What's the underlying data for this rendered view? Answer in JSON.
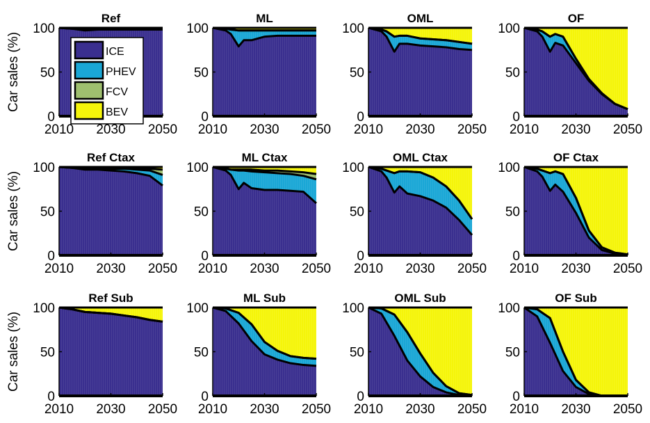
{
  "figure": {
    "ylabel": "Car sales (%)",
    "x_ticks": [
      "2010",
      "2030",
      "2050"
    ],
    "y_ticks": [
      "0",
      "50",
      "100"
    ]
  },
  "legend": {
    "entries": [
      {
        "label": "ICE",
        "color": "#3a2f8f"
      },
      {
        "label": "PHEV",
        "color": "#1aa7d6"
      },
      {
        "label": "FCV",
        "color": "#9fbf6f"
      },
      {
        "label": "BEV",
        "color": "#f5f50a"
      }
    ]
  },
  "colors": {
    "ICE": "#3a2f8f",
    "PHEV": "#1aa7d6",
    "FCV": "#9fbf6f",
    "BEV": "#f5f50a",
    "outline": "#000000"
  },
  "chart_data": [
    {
      "title": "Ref",
      "type": "area",
      "xlim": [
        2010,
        2050
      ],
      "ylim": [
        0,
        100
      ],
      "x": [
        2010,
        2015,
        2020,
        2025,
        2030,
        2035,
        2040,
        2045,
        2050
      ],
      "series": [
        {
          "name": "ICE",
          "values": [
            100,
            99,
            97,
            98,
            98,
            98,
            98,
            98,
            98
          ]
        },
        {
          "name": "PHEV",
          "values": [
            0,
            0,
            1,
            1,
            1,
            1,
            1,
            1,
            1
          ]
        },
        {
          "name": "FCV",
          "values": [
            0,
            0,
            0,
            0,
            0,
            0,
            0,
            0,
            0
          ]
        },
        {
          "name": "BEV",
          "values": [
            0,
            1,
            2,
            1,
            1,
            1,
            1,
            1,
            1
          ]
        }
      ]
    },
    {
      "title": "ML",
      "type": "area",
      "xlim": [
        2010,
        2050
      ],
      "ylim": [
        0,
        100
      ],
      "x": [
        2010,
        2015,
        2017,
        2020,
        2022,
        2025,
        2030,
        2035,
        2040,
        2045,
        2050
      ],
      "series": [
        {
          "name": "ICE",
          "values": [
            100,
            97,
            93,
            79,
            86,
            86,
            90,
            91,
            91,
            91,
            91
          ]
        },
        {
          "name": "PHEV",
          "values": [
            0,
            2,
            5,
            18,
            11,
            11,
            7,
            6,
            6,
            6,
            6
          ]
        },
        {
          "name": "FCV",
          "values": [
            0,
            0,
            0,
            0,
            0,
            0,
            0,
            0,
            0,
            0,
            0
          ]
        },
        {
          "name": "BEV",
          "values": [
            0,
            1,
            2,
            3,
            3,
            3,
            3,
            3,
            3,
            3,
            3
          ]
        }
      ]
    },
    {
      "title": "OML",
      "type": "area",
      "xlim": [
        2010,
        2050
      ],
      "ylim": [
        0,
        100
      ],
      "x": [
        2010,
        2015,
        2017,
        2020,
        2022,
        2025,
        2030,
        2035,
        2040,
        2045,
        2050
      ],
      "series": [
        {
          "name": "ICE",
          "values": [
            100,
            96,
            90,
            73,
            82,
            82,
            80,
            79,
            78,
            76,
            75
          ]
        },
        {
          "name": "PHEV",
          "values": [
            0,
            2,
            6,
            17,
            9,
            9,
            8,
            8,
            8,
            8,
            7
          ]
        },
        {
          "name": "FCV",
          "values": [
            0,
            0,
            0,
            0,
            0,
            0,
            0,
            0,
            0,
            0,
            0
          ]
        },
        {
          "name": "BEV",
          "values": [
            0,
            2,
            4,
            10,
            9,
            9,
            12,
            13,
            14,
            16,
            18
          ]
        }
      ]
    },
    {
      "title": "OF",
      "type": "area",
      "xlim": [
        2010,
        2050
      ],
      "ylim": [
        0,
        100
      ],
      "x": [
        2010,
        2015,
        2017,
        2020,
        2022,
        2025,
        2030,
        2035,
        2040,
        2045,
        2050
      ],
      "series": [
        {
          "name": "ICE",
          "values": [
            100,
            96,
            90,
            73,
            83,
            80,
            60,
            40,
            25,
            14,
            8
          ]
        },
        {
          "name": "PHEV",
          "values": [
            0,
            2,
            6,
            17,
            10,
            10,
            5,
            2,
            1,
            0,
            0
          ]
        },
        {
          "name": "FCV",
          "values": [
            0,
            0,
            0,
            0,
            0,
            0,
            0,
            0,
            0,
            0,
            0
          ]
        },
        {
          "name": "BEV",
          "values": [
            0,
            2,
            4,
            10,
            7,
            10,
            35,
            58,
            74,
            86,
            92
          ]
        }
      ]
    },
    {
      "title": "Ref Ctax",
      "type": "area",
      "xlim": [
        2010,
        2050
      ],
      "ylim": [
        0,
        100
      ],
      "x": [
        2010,
        2015,
        2020,
        2025,
        2030,
        2035,
        2040,
        2045,
        2050
      ],
      "series": [
        {
          "name": "ICE",
          "values": [
            100,
            99,
            97,
            97,
            96,
            95,
            93,
            90,
            79
          ]
        },
        {
          "name": "PHEV",
          "values": [
            0,
            0,
            1,
            1,
            2,
            3,
            4,
            6,
            12
          ]
        },
        {
          "name": "FCV",
          "values": [
            0,
            0,
            0,
            0,
            0,
            0,
            1,
            2,
            6
          ]
        },
        {
          "name": "BEV",
          "values": [
            0,
            1,
            2,
            2,
            2,
            2,
            2,
            2,
            3
          ]
        }
      ]
    },
    {
      "title": "ML Ctax",
      "type": "area",
      "xlim": [
        2010,
        2050
      ],
      "ylim": [
        0,
        100
      ],
      "x": [
        2010,
        2015,
        2017,
        2020,
        2022,
        2025,
        2030,
        2035,
        2040,
        2045,
        2050
      ],
      "series": [
        {
          "name": "ICE",
          "values": [
            100,
            96,
            91,
            75,
            82,
            76,
            74,
            74,
            73,
            72,
            59
          ]
        },
        {
          "name": "PHEV",
          "values": [
            0,
            2,
            6,
            21,
            14,
            19,
            20,
            19,
            19,
            18,
            27
          ]
        },
        {
          "name": "FCV",
          "values": [
            0,
            0,
            0,
            1,
            1,
            2,
            2,
            3,
            3,
            4,
            6
          ]
        },
        {
          "name": "BEV",
          "values": [
            0,
            2,
            3,
            3,
            3,
            3,
            4,
            4,
            5,
            6,
            8
          ]
        }
      ]
    },
    {
      "title": "OML Ctax",
      "type": "area",
      "xlim": [
        2010,
        2050
      ],
      "ylim": [
        0,
        100
      ],
      "x": [
        2010,
        2015,
        2017,
        2020,
        2022,
        2025,
        2030,
        2035,
        2040,
        2045,
        2050
      ],
      "series": [
        {
          "name": "ICE",
          "values": [
            100,
            95,
            88,
            71,
            78,
            70,
            67,
            62,
            54,
            40,
            23
          ]
        },
        {
          "name": "PHEV",
          "values": [
            0,
            3,
            8,
            22,
            17,
            25,
            27,
            26,
            24,
            22,
            18
          ]
        },
        {
          "name": "FCV",
          "values": [
            0,
            0,
            0,
            0,
            0,
            0,
            0,
            0,
            0,
            0,
            0
          ]
        },
        {
          "name": "BEV",
          "values": [
            0,
            2,
            4,
            7,
            5,
            5,
            6,
            12,
            22,
            38,
            59
          ]
        }
      ]
    },
    {
      "title": "OF Ctax",
      "type": "area",
      "xlim": [
        2010,
        2050
      ],
      "ylim": [
        0,
        100
      ],
      "x": [
        2010,
        2015,
        2017,
        2020,
        2022,
        2025,
        2030,
        2035,
        2040,
        2045,
        2050
      ],
      "series": [
        {
          "name": "ICE",
          "values": [
            100,
            95,
            89,
            73,
            80,
            72,
            48,
            20,
            6,
            2,
            1
          ]
        },
        {
          "name": "PHEV",
          "values": [
            0,
            3,
            7,
            20,
            15,
            20,
            17,
            8,
            3,
            1,
            0
          ]
        },
        {
          "name": "FCV",
          "values": [
            0,
            0,
            0,
            0,
            0,
            0,
            0,
            0,
            0,
            0,
            0
          ]
        },
        {
          "name": "BEV",
          "values": [
            0,
            2,
            4,
            7,
            5,
            8,
            35,
            72,
            91,
            97,
            99
          ]
        }
      ]
    },
    {
      "title": "Ref Sub",
      "type": "area",
      "xlim": [
        2010,
        2050
      ],
      "ylim": [
        0,
        100
      ],
      "x": [
        2010,
        2015,
        2020,
        2025,
        2030,
        2035,
        2040,
        2045,
        2050
      ],
      "series": [
        {
          "name": "ICE",
          "values": [
            100,
            98,
            95,
            94,
            93,
            91,
            89,
            86,
            84
          ]
        },
        {
          "name": "PHEV",
          "values": [
            0,
            0,
            0,
            0,
            0,
            0,
            0,
            0,
            0
          ]
        },
        {
          "name": "FCV",
          "values": [
            0,
            0,
            0,
            0,
            0,
            0,
            0,
            0,
            0
          ]
        },
        {
          "name": "BEV",
          "values": [
            0,
            2,
            5,
            6,
            7,
            9,
            11,
            14,
            16
          ]
        }
      ]
    },
    {
      "title": "ML Sub",
      "type": "area",
      "xlim": [
        2010,
        2050
      ],
      "ylim": [
        0,
        100
      ],
      "x": [
        2010,
        2015,
        2020,
        2025,
        2030,
        2035,
        2040,
        2045,
        2050
      ],
      "series": [
        {
          "name": "ICE",
          "values": [
            100,
            96,
            82,
            62,
            47,
            41,
            37,
            35,
            34
          ]
        },
        {
          "name": "PHEV",
          "values": [
            0,
            3,
            12,
            19,
            14,
            10,
            8,
            8,
            8
          ]
        },
        {
          "name": "FCV",
          "values": [
            0,
            0,
            0,
            0,
            0,
            0,
            0,
            0,
            0
          ]
        },
        {
          "name": "BEV",
          "values": [
            0,
            1,
            6,
            19,
            39,
            49,
            55,
            57,
            58
          ]
        }
      ]
    },
    {
      "title": "OML Sub",
      "type": "area",
      "xlim": [
        2010,
        2050
      ],
      "ylim": [
        0,
        100
      ],
      "x": [
        2010,
        2015,
        2020,
        2025,
        2030,
        2035,
        2040,
        2045,
        2050
      ],
      "series": [
        {
          "name": "ICE",
          "values": [
            100,
            93,
            68,
            40,
            22,
            10,
            4,
            1,
            0
          ]
        },
        {
          "name": "PHEV",
          "values": [
            0,
            6,
            24,
            32,
            26,
            16,
            7,
            2,
            1
          ]
        },
        {
          "name": "FCV",
          "values": [
            0,
            0,
            0,
            0,
            0,
            0,
            0,
            0,
            0
          ]
        },
        {
          "name": "BEV",
          "values": [
            0,
            1,
            8,
            28,
            52,
            74,
            89,
            97,
            99
          ]
        }
      ]
    },
    {
      "title": "OF Sub",
      "type": "area",
      "xlim": [
        2010,
        2050
      ],
      "ylim": [
        0,
        100
      ],
      "x": [
        2010,
        2015,
        2020,
        2025,
        2030,
        2035,
        2040,
        2045,
        2050
      ],
      "series": [
        {
          "name": "ICE",
          "values": [
            100,
            90,
            60,
            28,
            10,
            2,
            0,
            0,
            0
          ]
        },
        {
          "name": "PHEV",
          "values": [
            0,
            8,
            28,
            22,
            8,
            2,
            0,
            0,
            0
          ]
        },
        {
          "name": "FCV",
          "values": [
            0,
            0,
            0,
            0,
            0,
            0,
            0,
            0,
            0
          ]
        },
        {
          "name": "BEV",
          "values": [
            0,
            2,
            12,
            50,
            82,
            96,
            100,
            100,
            100
          ]
        }
      ]
    }
  ]
}
